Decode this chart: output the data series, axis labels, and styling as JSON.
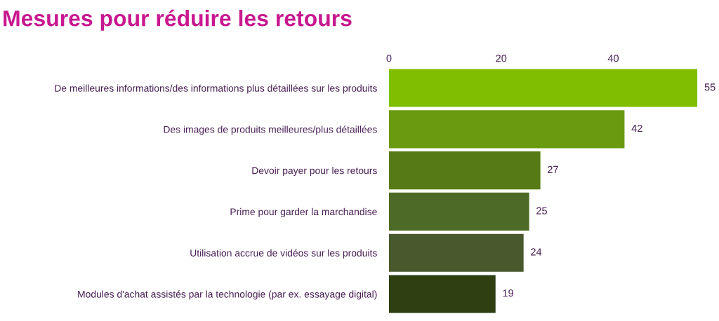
{
  "chart_data": {
    "type": "bar",
    "orientation": "horizontal",
    "title": "Mesures pour réduire les retours",
    "categories": [
      "De meilleures informations/des informations plus détaillées sur les produits",
      "Des images de produits meilleures/plus détaillées",
      "Devoir payer pour les retours",
      "Prime pour garder la marchandise",
      "Utilisation accrue de vidéos sur les produits",
      "Modules d'achat assistés par la technologie (par ex. essayage digital)"
    ],
    "values": [
      55,
      42,
      27,
      25,
      24,
      19
    ],
    "colors": [
      "#7fbe00",
      "#6a9a10",
      "#557a16",
      "#4d6b26",
      "#48592e",
      "#2e3f12"
    ],
    "xlim": [
      0,
      55
    ],
    "xticks": [
      0,
      20,
      40
    ],
    "grid": false,
    "data_labels": true
  }
}
